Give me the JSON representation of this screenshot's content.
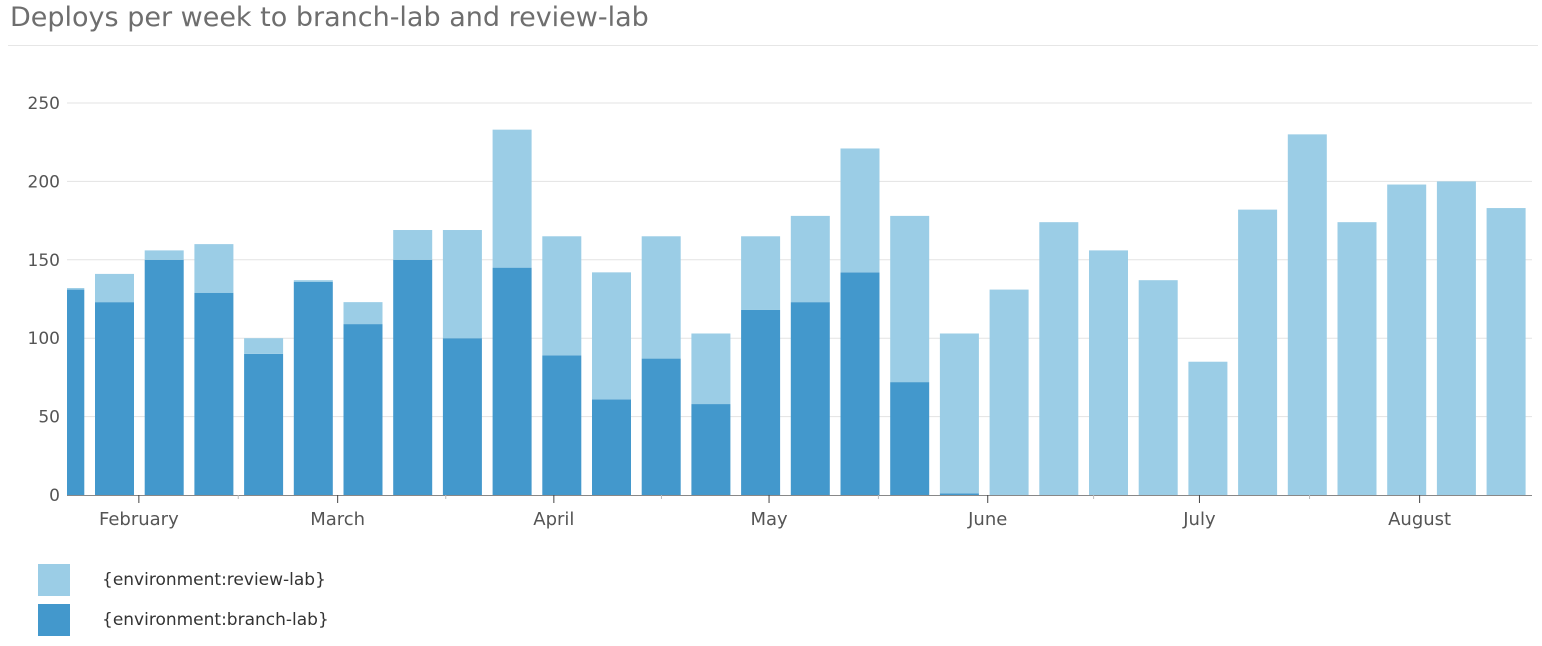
{
  "chart_data": {
    "type": "bar",
    "stacked": true,
    "title": "Deploys per week to branch-lab and review-lab",
    "xlabel": "",
    "ylabel": "",
    "ylim": [
      0,
      250
    ],
    "yticks": [
      0,
      50,
      100,
      150,
      200,
      250
    ],
    "xtick_labels": [
      "February",
      "March",
      "April",
      "May",
      "June",
      "July",
      "August"
    ],
    "grid": true,
    "legend_placement": "bottom-left",
    "series": [
      {
        "name": "{environment:branch-lab}",
        "color": "#4398cc",
        "values": [
          131,
          123,
          150,
          129,
          90,
          136,
          109,
          150,
          100,
          145,
          89,
          61,
          87,
          58,
          118,
          123,
          142,
          72,
          1,
          0,
          0,
          0,
          0,
          0,
          0,
          0,
          0,
          0,
          0,
          0
        ]
      },
      {
        "name": "{environment:review-lab}",
        "color": "#9bcde6",
        "values": [
          1,
          18,
          6,
          31,
          10,
          1,
          14,
          19,
          69,
          88,
          76,
          81,
          78,
          45,
          47,
          55,
          79,
          106,
          102,
          131,
          174,
          156,
          137,
          85,
          182,
          230,
          174,
          198,
          200,
          183
        ]
      }
    ]
  }
}
